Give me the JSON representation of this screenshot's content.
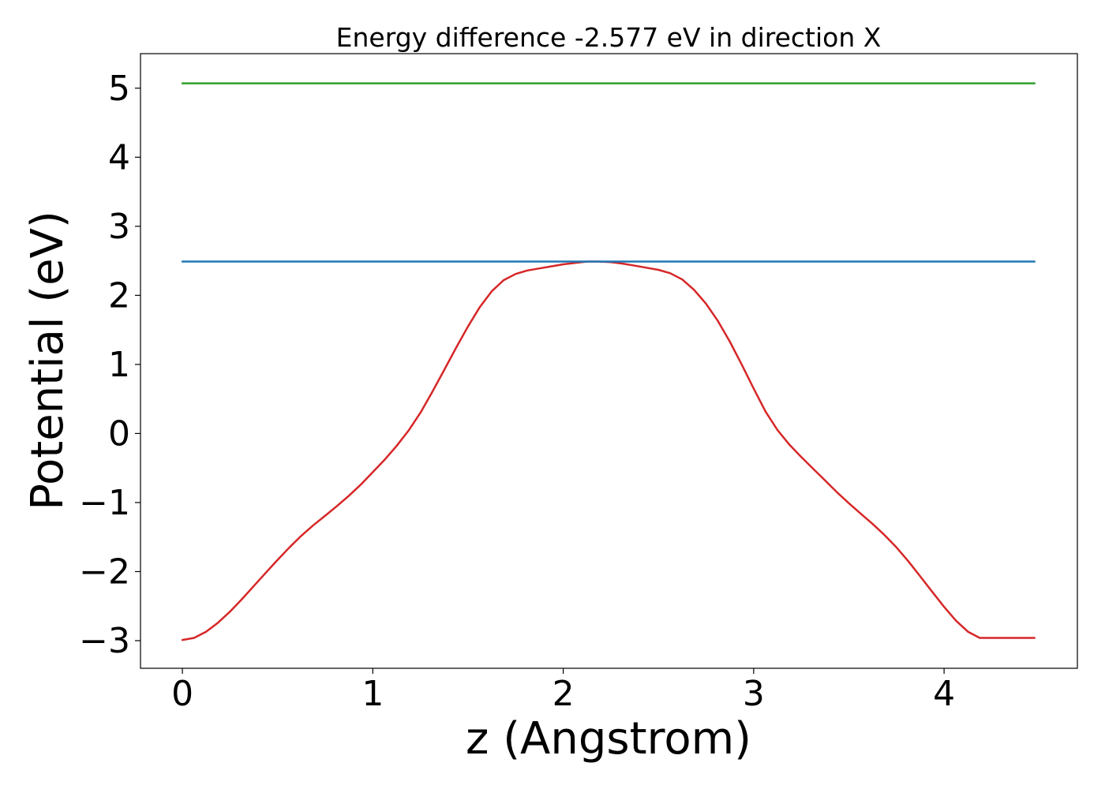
{
  "chart_data": {
    "type": "line",
    "title": "Energy difference -2.577 eV in direction X",
    "xlabel": "z (Angstrom)",
    "ylabel": "Potential (eV)",
    "xlim": [
      -0.22,
      4.7
    ],
    "ylim": [
      -3.4,
      5.5
    ],
    "x_ticks": [
      0,
      1,
      2,
      3,
      4
    ],
    "x_tick_labels": [
      "0",
      "1",
      "2",
      "3",
      "4"
    ],
    "y_ticks": [
      -3,
      -2,
      -1,
      0,
      1,
      2,
      3,
      4,
      5
    ],
    "y_tick_labels": [
      "−3",
      "−2",
      "−1",
      "0",
      "1",
      "2",
      "3",
      "4",
      "5"
    ],
    "grid": false,
    "legend": "none",
    "series": [
      {
        "color": "#d62728",
        "x": [
          0.0,
          0.062,
          0.125,
          0.187,
          0.25,
          0.312,
          0.375,
          0.437,
          0.5,
          0.562,
          0.625,
          0.687,
          0.75,
          0.812,
          0.875,
          0.937,
          1.0,
          1.062,
          1.125,
          1.187,
          1.25,
          1.312,
          1.375,
          1.437,
          1.5,
          1.562,
          1.625,
          1.687,
          1.75,
          1.812,
          1.875,
          1.937,
          2.0,
          2.062,
          2.125,
          2.187,
          2.25,
          2.312,
          2.375,
          2.437,
          2.5,
          2.562,
          2.625,
          2.687,
          2.75,
          2.812,
          2.875,
          2.937,
          3.0,
          3.062,
          3.125,
          3.187,
          3.25,
          3.312,
          3.375,
          3.437,
          3.5,
          3.562,
          3.625,
          3.687,
          3.75,
          3.812,
          3.875,
          3.937,
          4.0,
          4.062,
          4.125,
          4.187,
          4.25,
          4.312,
          4.375,
          4.437,
          4.475
        ],
        "y": [
          -2.99,
          -2.96,
          -2.87,
          -2.74,
          -2.58,
          -2.4,
          -2.21,
          -2.02,
          -1.83,
          -1.65,
          -1.48,
          -1.33,
          -1.19,
          -1.05,
          -0.9,
          -0.74,
          -0.56,
          -0.38,
          -0.18,
          0.04,
          0.3,
          0.6,
          0.92,
          1.24,
          1.55,
          1.83,
          2.06,
          2.22,
          2.31,
          2.36,
          2.39,
          2.42,
          2.45,
          2.47,
          2.49,
          2.49,
          2.48,
          2.46,
          2.43,
          2.4,
          2.37,
          2.32,
          2.23,
          2.08,
          1.88,
          1.63,
          1.33,
          1.0,
          0.65,
          0.32,
          0.05,
          -0.16,
          -0.34,
          -0.51,
          -0.68,
          -0.85,
          -1.01,
          -1.16,
          -1.31,
          -1.47,
          -1.65,
          -1.85,
          -2.07,
          -2.29,
          -2.51,
          -2.71,
          -2.87,
          -2.96,
          -2.96,
          -2.96,
          -2.96,
          -2.96,
          -2.96
        ]
      },
      {
        "color": "#1f77b4",
        "x": [
          0.0,
          4.475
        ],
        "y": [
          2.49,
          2.49
        ]
      },
      {
        "color": "#2ca02c",
        "x": [
          0.0,
          4.475
        ],
        "y": [
          5.07,
          5.07
        ]
      }
    ]
  }
}
